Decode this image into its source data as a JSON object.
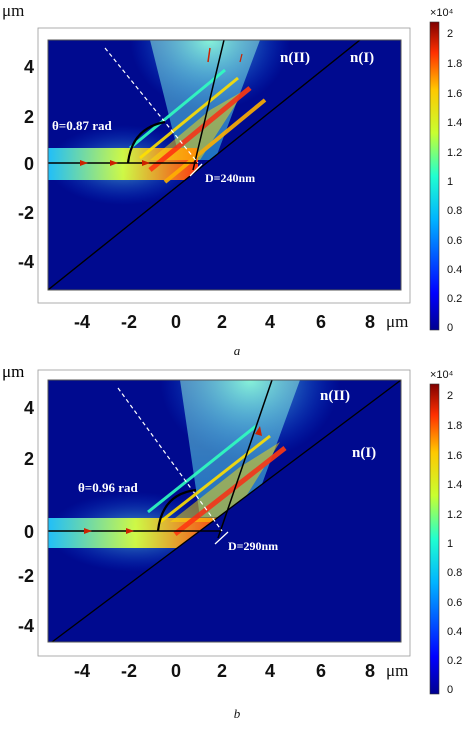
{
  "panels": [
    {
      "axis_unit_y": "μm",
      "axis_unit_x": "μm",
      "x_ticks": [
        "-4",
        "-2",
        "0",
        "2",
        "4",
        "6",
        "8"
      ],
      "y_ticks": [
        "4",
        "2",
        "0",
        "-2",
        "-4"
      ],
      "theta_label": "θ=0.87 rad",
      "d_label": "D=240nm",
      "n2_label": "n(II)",
      "n1_label": "n(I)",
      "colorbar_exp": "×10⁴",
      "colorbar_ticks": [
        "2",
        "1.8",
        "1.6",
        "1.4",
        "1.2",
        "1",
        "0.8",
        "0.6",
        "0.4",
        "0.2",
        "0"
      ],
      "caption": "a"
    },
    {
      "axis_unit_y": "μm",
      "axis_unit_x": "μm",
      "x_ticks": [
        "-4",
        "-2",
        "0",
        "2",
        "4",
        "6",
        "8"
      ],
      "y_ticks": [
        "4",
        "2",
        "0",
        "-2",
        "-4"
      ],
      "theta_label": "θ=0.96 rad",
      "d_label": "D=290nm",
      "n2_label": "n(II)",
      "n1_label": "n(I)",
      "colorbar_exp": "×10⁴",
      "colorbar_ticks": [
        "2",
        "1.8",
        "1.6",
        "1.4",
        "1.2",
        "1",
        "0.8",
        "0.6",
        "0.4",
        "0.2",
        "0"
      ],
      "caption": "b"
    }
  ],
  "colors": {
    "background_field": "#000a8f",
    "beam_peak": "#d01010",
    "arrow": "#cc2200"
  }
}
